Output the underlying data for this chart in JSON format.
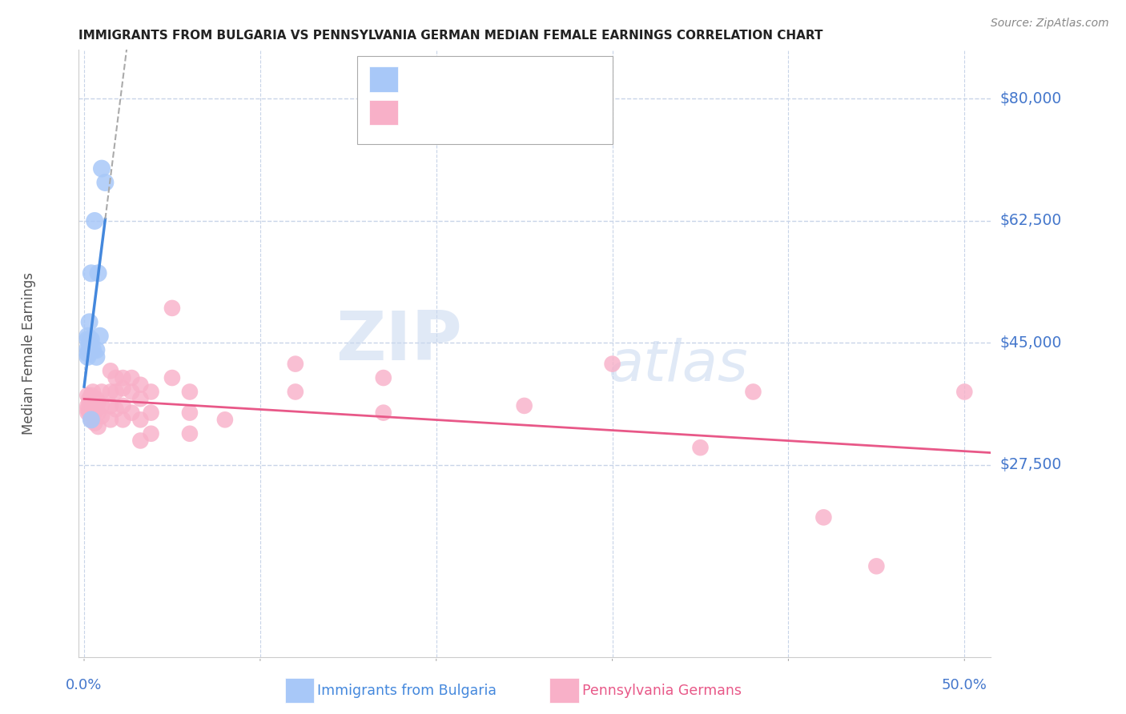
{
  "title": "IMMIGRANTS FROM BULGARIA VS PENNSYLVANIA GERMAN MEDIAN FEMALE EARNINGS CORRELATION CHART",
  "source": "Source: ZipAtlas.com",
  "ylabel": "Median Female Earnings",
  "ymin": 0,
  "ymax": 87000,
  "xmin": -0.003,
  "xmax": 0.515,
  "watermark_zip": "ZIP",
  "watermark_atlas": "atlas",
  "legend_label1": "Immigrants from Bulgaria",
  "legend_label2": "Pennsylvania Germans",
  "blue_color": "#a8c8f8",
  "pink_color": "#f8b0c8",
  "blue_line_color": "#4488dd",
  "pink_line_color": "#e85888",
  "blue_scatter": [
    [
      0.002,
      45500
    ],
    [
      0.002,
      44200
    ],
    [
      0.002,
      46000
    ],
    [
      0.002,
      43000
    ],
    [
      0.003,
      48000
    ],
    [
      0.003,
      45000
    ],
    [
      0.003,
      44000
    ],
    [
      0.004,
      55000
    ],
    [
      0.004,
      45500
    ],
    [
      0.005,
      44000
    ],
    [
      0.006,
      62500
    ],
    [
      0.007,
      44000
    ],
    [
      0.007,
      43000
    ],
    [
      0.008,
      55000
    ],
    [
      0.009,
      46000
    ],
    [
      0.01,
      70000
    ],
    [
      0.012,
      68000
    ],
    [
      0.004,
      34000
    ],
    [
      0.002,
      43500
    ]
  ],
  "pink_scatter": [
    [
      0.002,
      37500
    ],
    [
      0.002,
      36000
    ],
    [
      0.002,
      35500
    ],
    [
      0.002,
      35000
    ],
    [
      0.003,
      37000
    ],
    [
      0.003,
      36500
    ],
    [
      0.003,
      35000
    ],
    [
      0.004,
      37500
    ],
    [
      0.004,
      36000
    ],
    [
      0.004,
      35000
    ],
    [
      0.004,
      34000
    ],
    [
      0.005,
      38000
    ],
    [
      0.005,
      36000
    ],
    [
      0.005,
      35000
    ],
    [
      0.006,
      37000
    ],
    [
      0.006,
      36500
    ],
    [
      0.006,
      35000
    ],
    [
      0.006,
      33500
    ],
    [
      0.007,
      37000
    ],
    [
      0.007,
      35500
    ],
    [
      0.008,
      36500
    ],
    [
      0.008,
      35000
    ],
    [
      0.008,
      33000
    ],
    [
      0.01,
      38000
    ],
    [
      0.01,
      36000
    ],
    [
      0.01,
      34500
    ],
    [
      0.015,
      41000
    ],
    [
      0.015,
      38000
    ],
    [
      0.015,
      36000
    ],
    [
      0.015,
      34000
    ],
    [
      0.018,
      40000
    ],
    [
      0.018,
      38000
    ],
    [
      0.018,
      35500
    ],
    [
      0.022,
      40000
    ],
    [
      0.022,
      38500
    ],
    [
      0.022,
      36000
    ],
    [
      0.022,
      34000
    ],
    [
      0.027,
      40000
    ],
    [
      0.027,
      38000
    ],
    [
      0.027,
      35000
    ],
    [
      0.032,
      39000
    ],
    [
      0.032,
      37000
    ],
    [
      0.032,
      34000
    ],
    [
      0.032,
      31000
    ],
    [
      0.038,
      38000
    ],
    [
      0.038,
      35000
    ],
    [
      0.038,
      32000
    ],
    [
      0.05,
      50000
    ],
    [
      0.05,
      40000
    ],
    [
      0.06,
      38000
    ],
    [
      0.06,
      35000
    ],
    [
      0.06,
      32000
    ],
    [
      0.08,
      34000
    ],
    [
      0.12,
      42000
    ],
    [
      0.12,
      38000
    ],
    [
      0.17,
      40000
    ],
    [
      0.17,
      35000
    ],
    [
      0.25,
      36000
    ],
    [
      0.3,
      42000
    ],
    [
      0.35,
      30000
    ],
    [
      0.38,
      38000
    ],
    [
      0.42,
      20000
    ],
    [
      0.45,
      13000
    ],
    [
      0.5,
      38000
    ]
  ],
  "grid_color": "#c8d4e8",
  "bg_color": "#ffffff",
  "title_color": "#222222",
  "ytick_color": "#4477cc",
  "xtick_color": "#4477cc"
}
